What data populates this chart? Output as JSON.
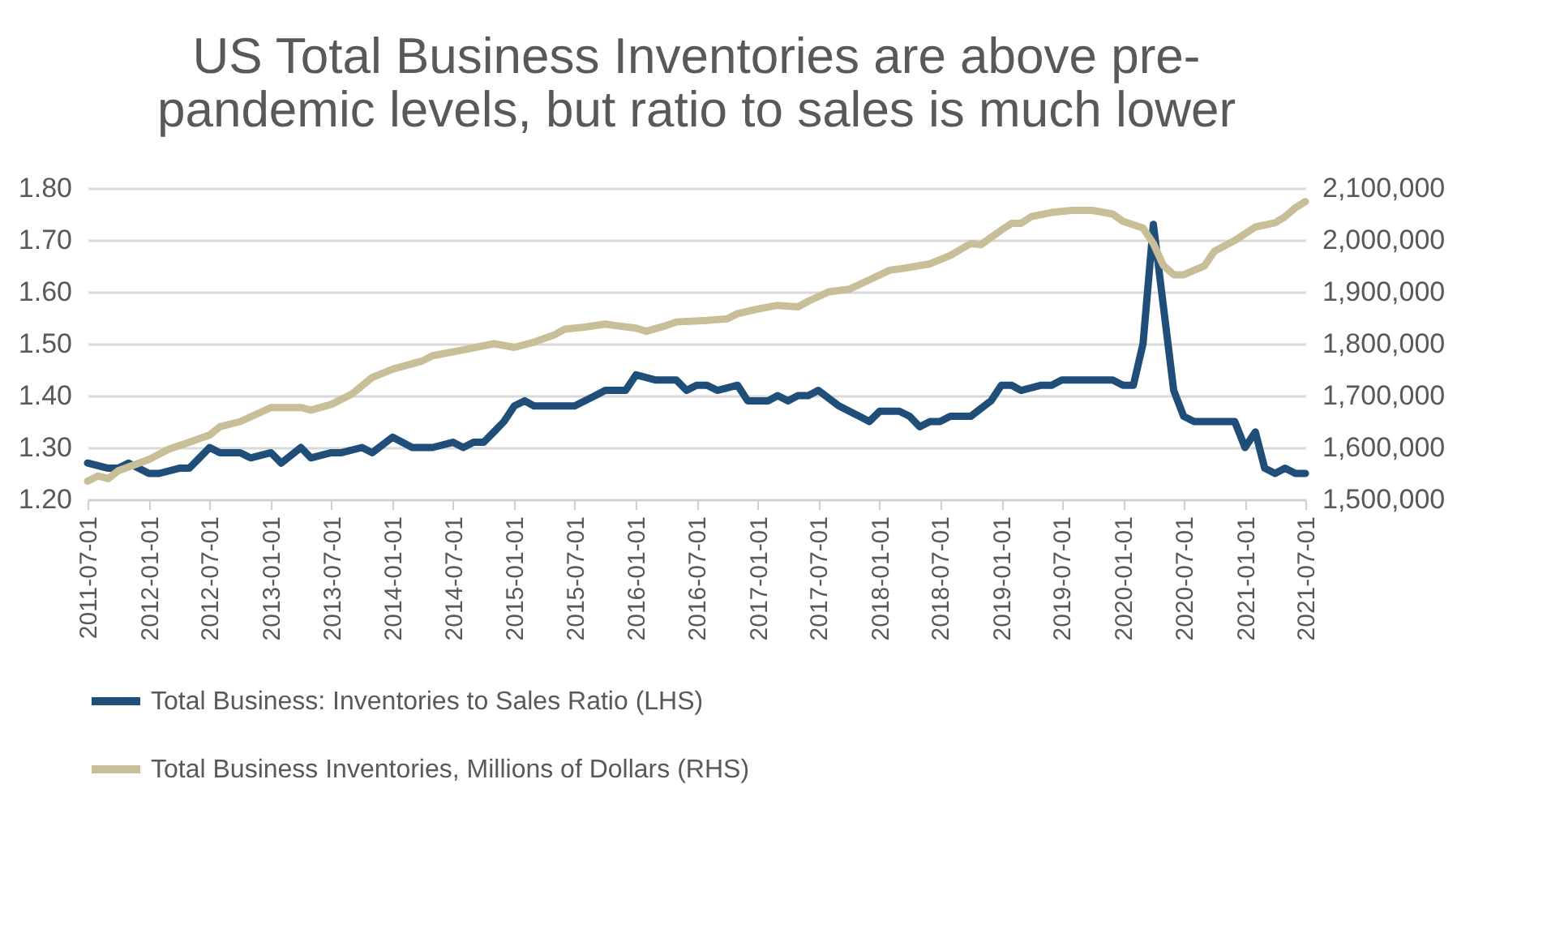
{
  "chart_data": {
    "type": "line",
    "title": "US Total Business Inventories are above pre-pandemic levels, but ratio to sales is much lower",
    "xlim": [
      "2011-07-01",
      "2021-07-01"
    ],
    "xticks": [
      "2011-07-01",
      "2012-01-01",
      "2012-07-01",
      "2013-01-01",
      "2013-07-01",
      "2014-01-01",
      "2014-07-01",
      "2015-01-01",
      "2015-07-01",
      "2016-01-01",
      "2016-07-01",
      "2017-01-01",
      "2017-07-01",
      "2018-01-01",
      "2018-07-01",
      "2019-01-01",
      "2019-07-01",
      "2020-01-01",
      "2020-07-01",
      "2021-01-01",
      "2021-07-01"
    ],
    "ylim": [
      1.2,
      1.8
    ],
    "yticks": [
      {
        "value": 1.2,
        "label": "1.20"
      },
      {
        "value": 1.3,
        "label": "1.30"
      },
      {
        "value": 1.4,
        "label": "1.40"
      },
      {
        "value": 1.5,
        "label": "1.50"
      },
      {
        "value": 1.6,
        "label": "1.60"
      },
      {
        "value": 1.7,
        "label": "1.70"
      },
      {
        "value": 1.8,
        "label": "1.80"
      }
    ],
    "y2lim": [
      1500000,
      2100000
    ],
    "y2ticks": [
      {
        "value": 1500000,
        "label": "1,500,000"
      },
      {
        "value": 1600000,
        "label": "1,600,000"
      },
      {
        "value": 1700000,
        "label": "1,700,000"
      },
      {
        "value": 1800000,
        "label": "1,800,000"
      },
      {
        "value": 1900000,
        "label": "1,900,000"
      },
      {
        "value": 2000000,
        "label": "2,000,000"
      },
      {
        "value": 2100000,
        "label": "2,100,000"
      }
    ],
    "grid": "y",
    "legend": "bottom",
    "line_style": "solid",
    "series": [
      {
        "name": "Total Business: Inventories to Sales Ratio (LHS)",
        "color": "#1f4e79",
        "axis": "y",
        "x": [
          "2011-07",
          "2011-09",
          "2011-10",
          "2011-11",
          "2012-01",
          "2012-02",
          "2012-04",
          "2012-05",
          "2012-06",
          "2012-07",
          "2012-08",
          "2012-10",
          "2012-11",
          "2013-01",
          "2013-02",
          "2013-04",
          "2013-05",
          "2013-07",
          "2013-08",
          "2013-10",
          "2013-11",
          "2014-01",
          "2014-03",
          "2014-05",
          "2014-07",
          "2014-08",
          "2014-09",
          "2014-10",
          "2014-11",
          "2014-12",
          "2015-01",
          "2015-02",
          "2015-03",
          "2015-07",
          "2015-09",
          "2015-10",
          "2015-12",
          "2016-01",
          "2016-03",
          "2016-05",
          "2016-06",
          "2016-07",
          "2016-08",
          "2016-09",
          "2016-11",
          "2016-12",
          "2017-02",
          "2017-03",
          "2017-04",
          "2017-05",
          "2017-06",
          "2017-07",
          "2017-09",
          "2017-11",
          "2017-12",
          "2018-01",
          "2018-03",
          "2018-04",
          "2018-05",
          "2018-06",
          "2018-07",
          "2018-08",
          "2018-10",
          "2018-12",
          "2019-01",
          "2019-02",
          "2019-03",
          "2019-05",
          "2019-06",
          "2019-07",
          "2019-12",
          "2020-01",
          "2020-02",
          "2020-03",
          "2020-04",
          "2020-06",
          "2020-07",
          "2020-08",
          "2020-12",
          "2021-01",
          "2021-02",
          "2021-03",
          "2021-04",
          "2021-05",
          "2021-06",
          "2021-07"
        ],
        "values": [
          1.27,
          1.26,
          1.26,
          1.27,
          1.25,
          1.25,
          1.26,
          1.26,
          1.28,
          1.3,
          1.29,
          1.29,
          1.28,
          1.29,
          1.27,
          1.3,
          1.28,
          1.29,
          1.29,
          1.3,
          1.29,
          1.32,
          1.3,
          1.3,
          1.31,
          1.3,
          1.31,
          1.31,
          1.33,
          1.35,
          1.38,
          1.39,
          1.38,
          1.38,
          1.4,
          1.41,
          1.41,
          1.44,
          1.43,
          1.43,
          1.41,
          1.42,
          1.42,
          1.41,
          1.42,
          1.39,
          1.39,
          1.4,
          1.39,
          1.4,
          1.4,
          1.41,
          1.38,
          1.36,
          1.35,
          1.37,
          1.37,
          1.36,
          1.34,
          1.35,
          1.35,
          1.36,
          1.36,
          1.39,
          1.42,
          1.42,
          1.41,
          1.42,
          1.42,
          1.43,
          1.43,
          1.42,
          1.42,
          1.5,
          1.73,
          1.41,
          1.36,
          1.35,
          1.35,
          1.3,
          1.33,
          1.26,
          1.25,
          1.26,
          1.25,
          1.25
        ]
      },
      {
        "name": "Total Business Inventories, Millions of Dollars (RHS)",
        "color": "#c8bf98",
        "axis": "y2",
        "x": [
          "2011-07",
          "2011-08",
          "2011-09",
          "2011-10",
          "2012-01",
          "2012-03",
          "2012-05",
          "2012-07",
          "2012-08",
          "2012-10",
          "2012-11",
          "2013-01",
          "2013-04",
          "2013-05",
          "2013-07",
          "2013-09",
          "2013-11",
          "2014-01",
          "2014-04",
          "2014-05",
          "2014-08",
          "2014-11",
          "2015-01",
          "2015-03",
          "2015-05",
          "2015-06",
          "2015-08",
          "2015-10",
          "2015-11",
          "2016-01",
          "2016-02",
          "2016-04",
          "2016-05",
          "2016-08",
          "2016-10",
          "2016-11",
          "2017-01",
          "2017-03",
          "2017-05",
          "2017-06",
          "2017-08",
          "2017-10",
          "2017-12",
          "2018-02",
          "2018-03",
          "2018-06",
          "2018-08",
          "2018-10",
          "2018-11",
          "2019-01",
          "2019-02",
          "2019-03",
          "2019-04",
          "2019-06",
          "2019-08",
          "2019-10",
          "2019-12",
          "2020-01",
          "2020-03",
          "2020-04",
          "2020-05",
          "2020-06",
          "2020-07",
          "2020-09",
          "2020-10",
          "2020-12",
          "2021-02",
          "2021-04",
          "2021-05",
          "2021-06",
          "2021-07"
        ],
        "values": [
          1535000,
          1545000,
          1540000,
          1555000,
          1577000,
          1597000,
          1610000,
          1624000,
          1640000,
          1650000,
          1659000,
          1677000,
          1677000,
          1672000,
          1683000,
          1703000,
          1735000,
          1751000,
          1767000,
          1777000,
          1788000,
          1800000,
          1793000,
          1803000,
          1817000,
          1828000,
          1832000,
          1838000,
          1835000,
          1830000,
          1824000,
          1835000,
          1842000,
          1845000,
          1848000,
          1858000,
          1867000,
          1874000,
          1871000,
          1882000,
          1900000,
          1905000,
          1923000,
          1942000,
          1944000,
          1954000,
          1970000,
          1993000,
          1991000,
          2019000,
          2032000,
          2032000,
          2045000,
          2053000,
          2057000,
          2057000,
          2050000,
          2036000,
          2023000,
          1993000,
          1951000,
          1933000,
          1933000,
          1950000,
          1978000,
          1999000,
          2025000,
          2033000,
          2045000,
          2062000,
          2074000
        ]
      }
    ]
  }
}
